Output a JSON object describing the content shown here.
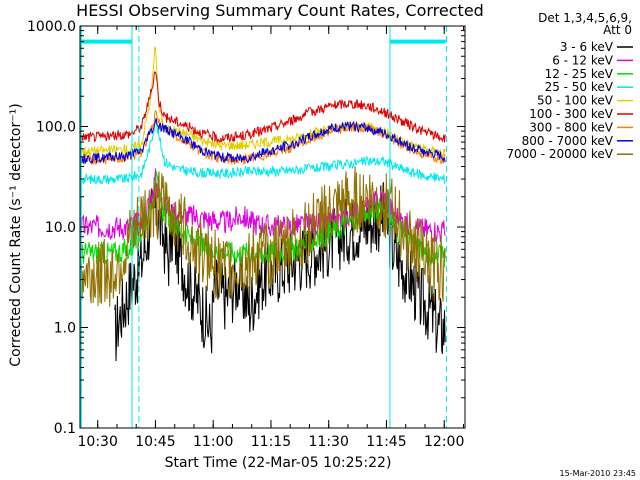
{
  "chart_data": {
    "type": "line",
    "title": "HESSI Observing Summary Count Rates, Corrected",
    "xlabel": "Start Time (22-Mar-05 10:25:22)",
    "ylabel": "Corrected Count Rate (s⁻¹ detector⁻¹)",
    "y_scale": "log",
    "ylim": [
      0.1,
      1000
    ],
    "y_ticks": [
      {
        "v": 0.1,
        "label": "0.1"
      },
      {
        "v": 1,
        "label": "1.0"
      },
      {
        "v": 10,
        "label": "10.0"
      },
      {
        "v": 100,
        "label": "100.0"
      },
      {
        "v": 1000,
        "label": "1000.0"
      }
    ],
    "xlim_minutes": [
      0,
      100
    ],
    "x_ticks": [
      {
        "m": 4.6,
        "label": "10:30"
      },
      {
        "m": 19.6,
        "label": "10:45"
      },
      {
        "m": 34.6,
        "label": "11:00"
      },
      {
        "m": 49.6,
        "label": "11:15"
      },
      {
        "m": 64.6,
        "label": "11:30"
      },
      {
        "m": 79.6,
        "label": "11:45"
      },
      {
        "m": 94.6,
        "label": "12:00"
      }
    ],
    "legend_header": [
      "Det 1,3,4,5,6,9,",
      "Att 0"
    ],
    "legend_position": "right",
    "series": [
      {
        "name": "3 - 6 keV",
        "color": "#000000",
        "points": [
          [
            9,
            0.8
          ],
          [
            10,
            1.2
          ],
          [
            13,
            2.5
          ],
          [
            16,
            4.5
          ],
          [
            18.5,
            12
          ],
          [
            19.6,
            16
          ],
          [
            21,
            10
          ],
          [
            23,
            5
          ],
          [
            24,
            9
          ],
          [
            26,
            5
          ],
          [
            28,
            3
          ],
          [
            31,
            1.8
          ],
          [
            34,
            0.9
          ],
          [
            35,
            2.5
          ],
          [
            38,
            2
          ],
          [
            41,
            3
          ],
          [
            44,
            1.6
          ],
          [
            47,
            3
          ],
          [
            50,
            3.5
          ],
          [
            55,
            4.5
          ],
          [
            60,
            5.5
          ],
          [
            65,
            7
          ],
          [
            70,
            9.5
          ],
          [
            75,
            11
          ],
          [
            77,
            12
          ],
          [
            79,
            13
          ],
          [
            80,
            10
          ],
          [
            81,
            6.5
          ],
          [
            83,
            4.5
          ],
          [
            86,
            3
          ],
          [
            88,
            2
          ],
          [
            91,
            1.5
          ],
          [
            93,
            1
          ],
          [
            95,
            1
          ]
        ]
      },
      {
        "name": "6 - 12 keV",
        "color": "#e000e0",
        "points": [
          [
            0,
            10
          ],
          [
            8,
            10
          ],
          [
            12,
            10
          ],
          [
            16,
            11
          ],
          [
            18.5,
            20
          ],
          [
            19.6,
            30
          ],
          [
            21,
            18
          ],
          [
            24,
            14
          ],
          [
            28,
            13
          ],
          [
            33,
            12
          ],
          [
            38,
            11
          ],
          [
            42,
            13
          ],
          [
            45,
            11
          ],
          [
            50,
            10
          ],
          [
            60,
            10.5
          ],
          [
            65,
            11
          ],
          [
            70,
            13
          ],
          [
            74,
            15
          ],
          [
            77,
            18
          ],
          [
            79,
            20
          ],
          [
            80,
            17
          ],
          [
            83,
            12
          ],
          [
            86,
            10
          ],
          [
            90,
            9.5
          ],
          [
            95,
            9
          ]
        ]
      },
      {
        "name": "12 - 25 keV",
        "color": "#00e000",
        "points": [
          [
            0,
            5.5
          ],
          [
            8,
            5.5
          ],
          [
            13,
            6
          ],
          [
            16,
            9
          ],
          [
            18.5,
            18
          ],
          [
            19.6,
            32
          ],
          [
            21,
            16
          ],
          [
            24,
            11
          ],
          [
            28,
            8
          ],
          [
            33,
            6
          ],
          [
            40,
            5.5
          ],
          [
            48,
            5.5
          ],
          [
            55,
            6
          ],
          [
            60,
            7
          ],
          [
            65,
            9
          ],
          [
            70,
            11
          ],
          [
            74,
            13
          ],
          [
            78,
            15
          ],
          [
            79,
            16
          ],
          [
            80,
            13
          ],
          [
            83,
            9
          ],
          [
            86,
            7
          ],
          [
            90,
            5.5
          ],
          [
            95,
            5
          ]
        ]
      },
      {
        "name": "25 - 50 keV",
        "color": "#00e8e8",
        "points": [
          [
            0,
            30
          ],
          [
            8,
            30
          ],
          [
            12,
            30
          ],
          [
            16,
            34
          ],
          [
            18.5,
            70
          ],
          [
            19.6,
            120
          ],
          [
            20.5,
            80
          ],
          [
            22,
            45
          ],
          [
            25,
            38
          ],
          [
            30,
            35
          ],
          [
            38,
            34
          ],
          [
            45,
            36
          ],
          [
            52,
            36
          ],
          [
            60,
            38
          ],
          [
            65,
            40
          ],
          [
            70,
            43
          ],
          [
            75,
            45
          ],
          [
            79,
            45
          ],
          [
            82,
            40
          ],
          [
            86,
            35
          ],
          [
            90,
            32
          ],
          [
            95,
            30
          ]
        ]
      },
      {
        "name": "50 - 100 keV",
        "color": "#e0d000",
        "points": [
          [
            0,
            57
          ],
          [
            8,
            58
          ],
          [
            13,
            60
          ],
          [
            16,
            68
          ],
          [
            18.5,
            200
          ],
          [
            19.6,
            700
          ],
          [
            20.5,
            150
          ],
          [
            22,
            95
          ],
          [
            25,
            90
          ],
          [
            28,
            85
          ],
          [
            32,
            72
          ],
          [
            36,
            65
          ],
          [
            42,
            65
          ],
          [
            48,
            70
          ],
          [
            55,
            75
          ],
          [
            60,
            85
          ],
          [
            65,
            95
          ],
          [
            70,
            102
          ],
          [
            75,
            100
          ],
          [
            80,
            85
          ],
          [
            85,
            68
          ],
          [
            90,
            58
          ],
          [
            95,
            55
          ]
        ]
      },
      {
        "name": "100 - 300 keV",
        "color": "#e00000",
        "points": [
          [
            0,
            78
          ],
          [
            8,
            80
          ],
          [
            13,
            85
          ],
          [
            16,
            100
          ],
          [
            18.5,
            220
          ],
          [
            19.6,
            380
          ],
          [
            20.5,
            180
          ],
          [
            22,
            125
          ],
          [
            25,
            112
          ],
          [
            28,
            100
          ],
          [
            32,
            85
          ],
          [
            36,
            76
          ],
          [
            42,
            80
          ],
          [
            48,
            92
          ],
          [
            55,
            115
          ],
          [
            60,
            140
          ],
          [
            65,
            160
          ],
          [
            70,
            170
          ],
          [
            75,
            160
          ],
          [
            79,
            140
          ],
          [
            84,
            110
          ],
          [
            89,
            90
          ],
          [
            95,
            75
          ]
        ]
      },
      {
        "name": "300 - 800 keV",
        "color": "#ff8000",
        "points": [
          [
            0,
            46
          ],
          [
            8,
            47
          ],
          [
            13,
            50
          ],
          [
            16,
            56
          ],
          [
            18.5,
            95
          ],
          [
            19.6,
            130
          ],
          [
            21,
            100
          ],
          [
            24,
            85
          ],
          [
            28,
            70
          ],
          [
            32,
            55
          ],
          [
            36,
            48
          ],
          [
            42,
            46
          ],
          [
            48,
            52
          ],
          [
            55,
            62
          ],
          [
            60,
            75
          ],
          [
            65,
            90
          ],
          [
            70,
            98
          ],
          [
            75,
            95
          ],
          [
            80,
            80
          ],
          [
            85,
            62
          ],
          [
            90,
            52
          ],
          [
            95,
            47
          ]
        ]
      },
      {
        "name": "800 - 7000 keV",
        "color": "#0000e0",
        "points": [
          [
            0,
            48
          ],
          [
            8,
            49
          ],
          [
            13,
            52
          ],
          [
            16,
            58
          ],
          [
            18.5,
            90
          ],
          [
            19.6,
            110
          ],
          [
            21,
            100
          ],
          [
            24,
            88
          ],
          [
            28,
            72
          ],
          [
            32,
            58
          ],
          [
            36,
            50
          ],
          [
            42,
            48
          ],
          [
            48,
            55
          ],
          [
            55,
            66
          ],
          [
            60,
            80
          ],
          [
            65,
            95
          ],
          [
            70,
            100
          ],
          [
            75,
            97
          ],
          [
            80,
            82
          ],
          [
            85,
            65
          ],
          [
            90,
            55
          ],
          [
            95,
            49
          ]
        ]
      },
      {
        "name": "7000 - 20000 keV",
        "color": "#907000",
        "points": [
          [
            0,
            3.5
          ],
          [
            8,
            3.5
          ],
          [
            12,
            6
          ],
          [
            15,
            10
          ],
          [
            17,
            14
          ],
          [
            19.6,
            16
          ],
          [
            22,
            16
          ],
          [
            25,
            13
          ],
          [
            28,
            9
          ],
          [
            31,
            6
          ],
          [
            34,
            4.5
          ],
          [
            38,
            3.8
          ],
          [
            44,
            4.5
          ],
          [
            50,
            5.5
          ],
          [
            55,
            7
          ],
          [
            60,
            9.5
          ],
          [
            65,
            13
          ],
          [
            70,
            17
          ],
          [
            74,
            20
          ],
          [
            78,
            18
          ],
          [
            81,
            14
          ],
          [
            84,
            9.5
          ],
          [
            87,
            6.5
          ],
          [
            90,
            4.5
          ],
          [
            95,
            3.5
          ]
        ]
      }
    ],
    "annotations": {
      "saa_bars_y": 700,
      "saa_bars_minutes": [
        [
          0,
          13.5
        ],
        [
          80.5,
          95
        ]
      ],
      "solid_markers_minutes": [
        13.5,
        80.5
      ],
      "dashed_markers_minutes": [
        15.3,
        95.2
      ]
    }
  },
  "timestamp": "15-Mar-2010 23:45"
}
